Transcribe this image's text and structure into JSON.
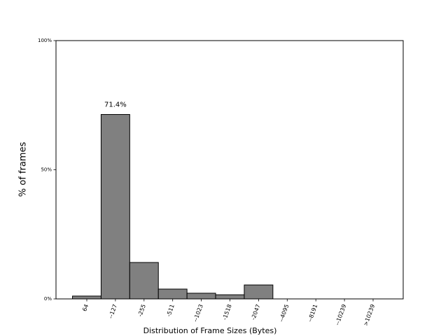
{
  "chart_data": {
    "type": "bar",
    "xlabel": "Distribution of Frame Sizes (Bytes)",
    "ylabel": "% of frames",
    "categories": [
      "64",
      "--127",
      "-255",
      "-511",
      "--1023",
      "-1518",
      "-2047",
      "--4095",
      "--8191",
      "--10239",
      ">10239"
    ],
    "values": [
      1.1,
      71.4,
      14.1,
      3.8,
      2.2,
      1.6,
      5.4,
      0,
      0,
      0,
      0
    ],
    "value_labels": [
      null,
      "71.4%",
      null,
      null,
      null,
      null,
      null,
      null,
      null,
      null,
      null
    ],
    "color": "#808080",
    "edgecolor": "#000000",
    "ylim": [
      0,
      100
    ],
    "yticks": [
      {
        "value": 0,
        "label": "0%"
      },
      {
        "value": 50,
        "label": "50%"
      },
      {
        "value": 100,
        "label": "100%"
      }
    ],
    "grid": false
  }
}
